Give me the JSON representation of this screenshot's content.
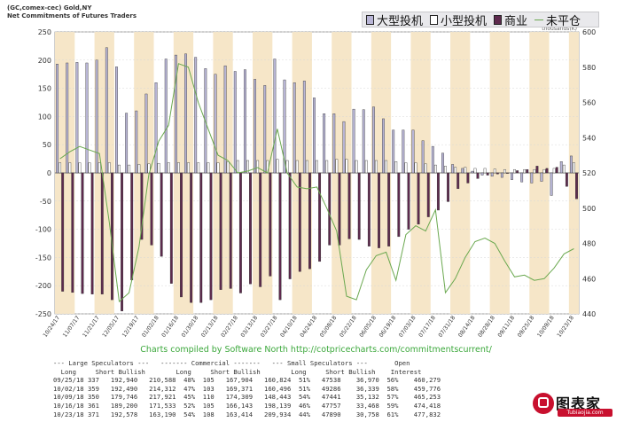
{
  "header": {
    "line1": "(GC,comex-cec) Gold,NY",
    "line2": "Net Commitments of Futures Traders"
  },
  "legend": {
    "items": [
      {
        "label": "大型投机",
        "color": "#b8b5d6",
        "kind": "box"
      },
      {
        "label": "小型投机",
        "color": "#ffffff",
        "kind": "box"
      },
      {
        "label": "商业",
        "color": "#5e2a4e",
        "kind": "box"
      },
      {
        "label": "未平仓",
        "color": "#6aa84f",
        "kind": "line"
      }
    ]
  },
  "credit": "Charts compiled by Software North  http://cotpricecharts.com/commitmentscurrent/",
  "table": {
    "header1": "--- Large Speculators ---   ------- Commercial -------   --- Small Speculators ---       Open",
    "header2": "  Long     Short Bullish        Long     Short Bullish        Long     Short Bullish    Interest",
    "rows": [
      "09/25/18 337   192,940   210,588  48%  105   167,904   160,824  51%   47538    36,970  56%    460,279",
      "10/02/18 359   192,490   214,312  47%  103   169,371   160,496  51%   49286    36,339  58%    459,776",
      "10/09/18 350   179,746   217,921  45%  110   174,309   148,443  54%   47441    35,132  57%    465,253",
      "10/16/18 361   189,200   171,533  52%  105   166,143   198,139  46%   47757    33,468  59%    474,418",
      "10/23/18 371   192,578   163,190  54%  108   163,414   209,934  44%   47890    30,758  61%    477,832"
    ]
  },
  "logo": {
    "name": "图表家",
    "url": "Tubiaojia.com"
  },
  "chart_data": {
    "type": "bar",
    "title": "",
    "left_axis": {
      "min": -250,
      "max": 250,
      "ticks": [
        250,
        200,
        150,
        100,
        50,
        0,
        -50,
        -100,
        -150,
        -200,
        -250
      ]
    },
    "right_axis": {
      "label": "thousands(K)",
      "min": 440,
      "max": 600,
      "ticks": [
        600,
        580,
        560,
        540,
        520,
        500,
        480,
        460,
        440
      ]
    },
    "categories": [
      "10/24/17",
      "10/31/17",
      "11/07/17",
      "11/14/17",
      "11/21/17",
      "11/28/17",
      "12/05/17",
      "12/12/17",
      "12/19/17",
      "12/26/17",
      "01/02/18",
      "01/09/18",
      "01/16/18",
      "01/23/18",
      "01/30/18",
      "02/06/18",
      "02/13/18",
      "02/20/18",
      "02/27/18",
      "03/06/18",
      "03/13/18",
      "03/20/18",
      "03/27/18",
      "04/03/18",
      "04/10/18",
      "04/17/18",
      "04/24/18",
      "05/01/18",
      "05/08/18",
      "05/15/18",
      "05/22/18",
      "05/29/18",
      "06/05/18",
      "06/12/18",
      "06/19/18",
      "06/26/18",
      "07/03/18",
      "07/10/18",
      "07/17/18",
      "07/24/18",
      "07/31/18",
      "08/07/18",
      "08/14/18",
      "08/21/18",
      "08/28/18",
      "09/04/18",
      "09/11/18",
      "09/18/18",
      "09/25/18",
      "10/02/18",
      "10/09/18",
      "10/16/18",
      "10/23/18"
    ],
    "x_tick_labels": [
      "10/24/17",
      "11/07/17",
      "11/21/17",
      "12/05/17",
      "12/19/17",
      "01/02/18",
      "01/16/18",
      "01/30/18",
      "02/13/18",
      "02/27/18",
      "03/13/18",
      "03/27/18",
      "04/10/18",
      "04/24/18",
      "05/08/18",
      "05/22/18",
      "06/05/18",
      "06/19/18",
      "07/03/18",
      "07/17/18",
      "07/31/18",
      "08/14/18",
      "08/28/18",
      "09/11/18",
      "09/25/18",
      "10/09/18",
      "10/23/18"
    ],
    "series": [
      {
        "name": "大型投机",
        "axis": "left",
        "color": "#b8b5d6",
        "values": [
          193,
          195,
          196,
          195,
          200,
          222,
          188,
          106,
          110,
          140,
          160,
          202,
          209,
          211,
          205,
          185,
          175,
          190,
          180,
          183,
          166,
          155,
          202,
          165,
          160,
          163,
          133,
          105,
          105,
          91,
          113,
          112,
          117,
          96,
          76,
          76,
          76,
          57,
          47,
          35,
          15,
          8,
          3,
          -4,
          -6,
          -8,
          -12,
          -16,
          -18,
          -15,
          -40,
          20,
          30
        ]
      },
      {
        "name": "小型投机",
        "axis": "left",
        "color": "#ffffff",
        "values": [
          18,
          18,
          18,
          18,
          18,
          18,
          14,
          14,
          15,
          16,
          17,
          18,
          18,
          18,
          18,
          18,
          18,
          20,
          22,
          22,
          22,
          22,
          24,
          22,
          22,
          22,
          22,
          22,
          24,
          24,
          22,
          22,
          22,
          22,
          20,
          18,
          18,
          16,
          14,
          12,
          10,
          10,
          8,
          8,
          7,
          6,
          6,
          6,
          6,
          6,
          8,
          14,
          18
        ]
      },
      {
        "name": "商业",
        "axis": "left",
        "color": "#5e2a4e",
        "values": [
          -210,
          -212,
          -214,
          -215,
          -215,
          -225,
          -245,
          -190,
          -118,
          -128,
          -148,
          -196,
          -220,
          -230,
          -230,
          -225,
          -207,
          -205,
          -213,
          -197,
          -202,
          -183,
          -225,
          -188,
          -175,
          -170,
          -157,
          -128,
          -128,
          -117,
          -118,
          -130,
          -133,
          -130,
          -113,
          -100,
          -91,
          -78,
          -66,
          -51,
          -28,
          -18,
          -10,
          -4,
          -2,
          -1,
          4,
          6,
          12,
          8,
          10,
          -24,
          -46
        ]
      },
      {
        "name": "未平仓",
        "axis": "right",
        "color": "#6aa84f",
        "kind": "line",
        "values": [
          528,
          532,
          535,
          533,
          531,
          492,
          447,
          452,
          478,
          519,
          538,
          547,
          582,
          580,
          560,
          545,
          530,
          527,
          520,
          521,
          523,
          520,
          545,
          520,
          512,
          511,
          512,
          500,
          487,
          450,
          448,
          465,
          473,
          475,
          459,
          485,
          490,
          487,
          499,
          452,
          460,
          472,
          481,
          483,
          480,
          470,
          461,
          462,
          459,
          460,
          466,
          474,
          477
        ]
      }
    ]
  }
}
